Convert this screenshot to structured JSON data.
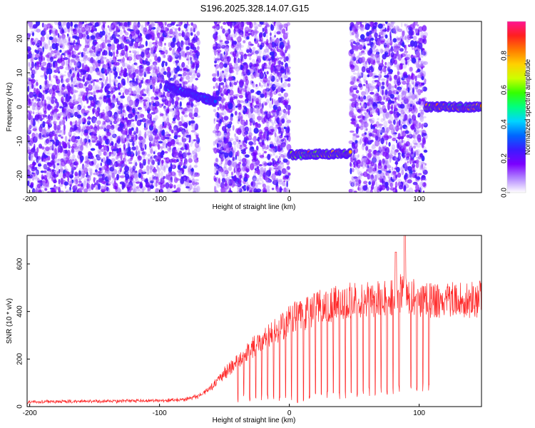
{
  "title": "S196.2025.328.14.07.G15",
  "chart_data": [
    {
      "type": "heatmap",
      "name": "spectrogram",
      "title": "S196.2025.328.14.07.G15",
      "xlabel": "Height of straight line (km)",
      "ylabel": "Frequency (Hz)",
      "xlim": [
        -202,
        148
      ],
      "ylim": [
        -25,
        25
      ],
      "xticks": [
        -200,
        -100,
        0,
        100
      ],
      "yticks": [
        -20,
        -10,
        0,
        10,
        20
      ],
      "colorbar": {
        "label": "Normalized spectral amplitude",
        "range": [
          0.0,
          1.0
        ],
        "ticks": [
          "0.0",
          "0.2",
          "0.4",
          "0.6",
          "0.8"
        ],
        "colors": [
          "#ffffff",
          "#b388ff",
          "#7b00ff",
          "#3c1aff",
          "#0066ff",
          "#00d5ff",
          "#00ff80",
          "#33ff00",
          "#ccff00",
          "#ffd000",
          "#ff7a00",
          "#ff1f1f",
          "#ff1493"
        ]
      },
      "noise_regions_km": [
        [
          -202,
          -70
        ],
        [
          -58,
          0
        ],
        [
          47,
          105
        ]
      ],
      "signal_tracks": [
        {
          "x_start": -95,
          "x_end": -57,
          "freq_start_hz": 6,
          "freq_end_hz": 1.5,
          "peak_amplitude": 0.45
        },
        {
          "x_start": 0,
          "x_end": 47,
          "freq_start_hz": -14,
          "freq_end_hz": -13.5,
          "peak_amplitude": 0.9
        },
        {
          "x_start": 105,
          "x_end": 148,
          "freq_start_hz": 0,
          "freq_end_hz": 0,
          "peak_amplitude": 0.9
        }
      ]
    },
    {
      "type": "line",
      "name": "snr",
      "xlabel": "Height of straight line (km)",
      "ylabel": "SNR (10 * v/v)",
      "xlim": [
        -202,
        148
      ],
      "ylim": [
        0,
        720
      ],
      "xticks": [
        -200,
        -100,
        0,
        100
      ],
      "yticks": [
        0,
        200,
        400,
        600
      ],
      "color": "#ff2a2a",
      "envelope": {
        "x": [
          -202,
          -150,
          -100,
          -80,
          -70,
          -60,
          -50,
          -40,
          -30,
          -20,
          -10,
          0,
          10,
          20,
          30,
          40,
          50,
          60,
          70,
          80,
          85,
          90,
          100,
          110,
          120,
          130,
          148
        ],
        "y": [
          20,
          22,
          25,
          30,
          45,
          80,
          140,
          190,
          240,
          290,
          320,
          360,
          390,
          410,
          430,
          440,
          445,
          450,
          455,
          460,
          480,
          470,
          450,
          440,
          445,
          448,
          450
        ]
      },
      "dropouts_x_range": [
        -40,
        108
      ],
      "spikes": [
        {
          "x": 82,
          "y": 650
        },
        {
          "x": 89,
          "y": 720
        }
      ]
    }
  ]
}
